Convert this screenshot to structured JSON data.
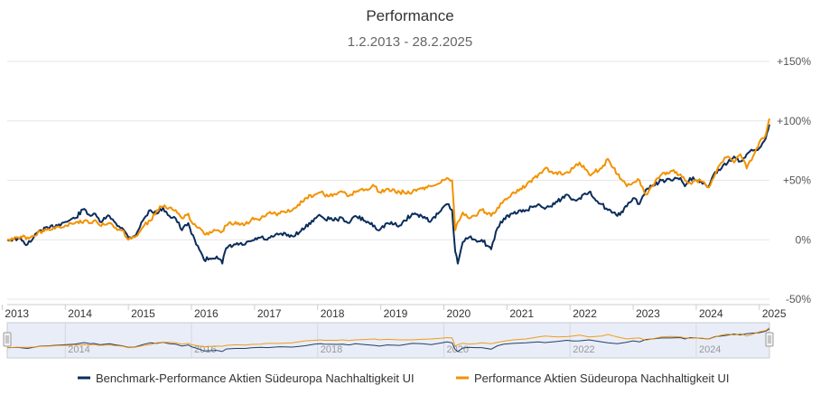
{
  "chart_data": {
    "type": "line",
    "title": "Performance",
    "subtitle": "1.2.2013 - 28.2.2025",
    "xlabel": "",
    "ylabel": "",
    "xlim": [
      2013.08,
      2025.16
    ],
    "ylim": [
      -50,
      150
    ],
    "x_ticks": [
      "2013",
      "2014",
      "2015",
      "2016",
      "2017",
      "2018",
      "2019",
      "2020",
      "2021",
      "2022",
      "2023",
      "2024",
      "2025"
    ],
    "y_ticks": [
      "-50%",
      "0%",
      "+50%",
      "+100%",
      "+150%"
    ],
    "y_tick_values": [
      -50,
      0,
      50,
      100,
      150
    ],
    "grid": true,
    "legend_position": "bottom",
    "navigator": {
      "labels": [
        "2014",
        "2016",
        "2018",
        "2020",
        "2022",
        "2024"
      ]
    },
    "series": [
      {
        "name": "Benchmark-Performance Aktien Südeuropa Nachhaltigkeit UI",
        "color": "#0b2d5b",
        "x": [
          2013.08,
          2013.25,
          2013.4,
          2013.5,
          2013.6,
          2013.75,
          2013.9,
          2014.0,
          2014.15,
          2014.3,
          2014.4,
          2014.45,
          2014.55,
          2014.7,
          2014.8,
          2014.9,
          2015.0,
          2015.1,
          2015.25,
          2015.35,
          2015.45,
          2015.55,
          2015.65,
          2015.75,
          2015.85,
          2015.95,
          2016.0,
          2016.1,
          2016.2,
          2016.4,
          2016.49,
          2016.55,
          2016.7,
          2016.85,
          2016.95,
          2017.1,
          2017.2,
          2017.4,
          2017.6,
          2017.8,
          2017.95,
          2018.05,
          2018.1,
          2018.3,
          2018.4,
          2018.5,
          2018.6,
          2018.75,
          2018.9,
          2018.98,
          2019.1,
          2019.3,
          2019.5,
          2019.65,
          2019.8,
          2019.95,
          2020.05,
          2020.13,
          2020.18,
          2020.22,
          2020.3,
          2020.4,
          2020.5,
          2020.6,
          2020.75,
          2020.85,
          2020.95,
          2021.1,
          2021.3,
          2021.5,
          2021.6,
          2021.8,
          2021.95,
          2022.05,
          2022.15,
          2022.3,
          2022.5,
          2022.6,
          2022.75,
          2022.9,
          2023.0,
          2023.1,
          2023.2,
          2023.3,
          2023.45,
          2023.6,
          2023.75,
          2023.82,
          2023.9,
          2024.0,
          2024.1,
          2024.2,
          2024.3,
          2024.4,
          2024.5,
          2024.6,
          2024.7,
          2024.8,
          2024.9,
          2025.0,
          2025.1,
          2025.16
        ],
        "values": [
          0,
          1,
          -4,
          2,
          8,
          10,
          13,
          15,
          18,
          26,
          20,
          22,
          15,
          20,
          14,
          10,
          2,
          3,
          18,
          25,
          22,
          27,
          20,
          18,
          8,
          14,
          5,
          -5,
          -17,
          -14,
          -20,
          -7,
          -4,
          -4,
          -1,
          2,
          0,
          5,
          3,
          10,
          18,
          20,
          18,
          17,
          18,
          14,
          20,
          16,
          12,
          8,
          14,
          12,
          22,
          20,
          16,
          24,
          30,
          25,
          -10,
          -20,
          -2,
          2,
          0,
          0,
          -8,
          10,
          18,
          22,
          25,
          30,
          26,
          32,
          38,
          34,
          35,
          40,
          30,
          25,
          20,
          28,
          35,
          30,
          42,
          45,
          50,
          50,
          52,
          45,
          52,
          50,
          47,
          45,
          57,
          60,
          65,
          70,
          66,
          72,
          75,
          77,
          85,
          97
        ]
      },
      {
        "name": "Performance Aktien Südeuropa Nachhaltigkeit UI",
        "color": "#f39200",
        "x": [
          2013.08,
          2013.25,
          2013.4,
          2013.5,
          2013.6,
          2013.75,
          2013.9,
          2014.0,
          2014.15,
          2014.3,
          2014.4,
          2014.45,
          2014.55,
          2014.7,
          2014.8,
          2014.9,
          2015.0,
          2015.1,
          2015.25,
          2015.35,
          2015.45,
          2015.55,
          2015.65,
          2015.75,
          2015.85,
          2015.95,
          2016.0,
          2016.1,
          2016.2,
          2016.4,
          2016.49,
          2016.55,
          2016.7,
          2016.85,
          2016.95,
          2017.1,
          2017.2,
          2017.4,
          2017.6,
          2017.8,
          2017.95,
          2018.05,
          2018.1,
          2018.3,
          2018.4,
          2018.5,
          2018.6,
          2018.75,
          2018.9,
          2018.98,
          2019.1,
          2019.3,
          2019.5,
          2019.65,
          2019.8,
          2019.95,
          2020.05,
          2020.13,
          2020.18,
          2020.22,
          2020.3,
          2020.4,
          2020.5,
          2020.6,
          2020.75,
          2020.85,
          2020.95,
          2021.1,
          2021.3,
          2021.5,
          2021.6,
          2021.8,
          2021.95,
          2022.05,
          2022.15,
          2022.3,
          2022.5,
          2022.6,
          2022.75,
          2022.9,
          2023.0,
          2023.1,
          2023.2,
          2023.3,
          2023.45,
          2023.6,
          2023.75,
          2023.82,
          2023.9,
          2024.0,
          2024.1,
          2024.2,
          2024.3,
          2024.4,
          2024.5,
          2024.6,
          2024.7,
          2024.8,
          2024.9,
          2025.0,
          2025.1,
          2025.16
        ],
        "values": [
          0,
          2,
          2,
          3,
          7,
          8,
          11,
          12,
          14,
          16,
          14,
          16,
          12,
          14,
          10,
          8,
          0,
          2,
          12,
          16,
          25,
          28,
          27,
          25,
          18,
          22,
          15,
          10,
          5,
          8,
          7,
          12,
          15,
          13,
          17,
          18,
          22,
          22,
          25,
          35,
          38,
          40,
          38,
          38,
          40,
          37,
          40,
          42,
          45,
          40,
          43,
          40,
          40,
          43,
          45,
          48,
          52,
          50,
          8,
          15,
          23,
          18,
          20,
          25,
          20,
          27,
          33,
          40,
          45,
          55,
          60,
          55,
          57,
          60,
          65,
          55,
          60,
          68,
          55,
          45,
          48,
          50,
          38,
          45,
          55,
          58,
          55,
          50,
          48,
          50,
          49,
          44,
          55,
          65,
          70,
          65,
          72,
          60,
          70,
          82,
          88,
          102
        ]
      }
    ]
  }
}
